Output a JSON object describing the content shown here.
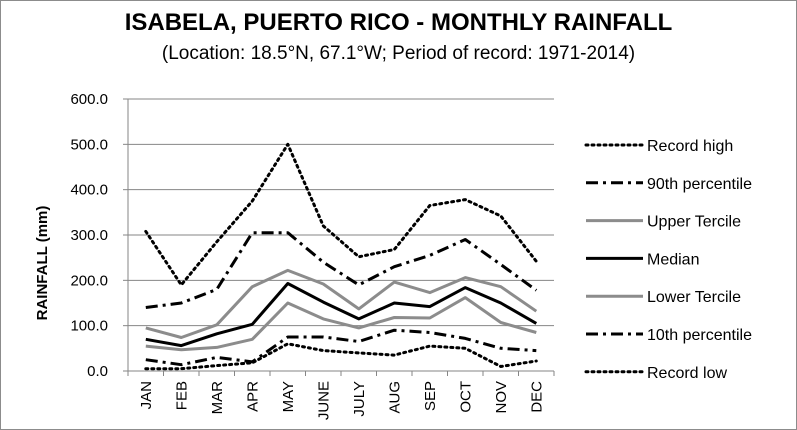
{
  "chart_data": {
    "type": "line",
    "title": "ISABELA, PUERTO RICO - MONTHLY RAINFALL",
    "subtitle": "(Location: 18.5°N, 67.1°W; Period of record: 1971-2014)",
    "xlabel": "",
    "ylabel": "RAINFALL (mm)",
    "ylim": [
      0,
      600
    ],
    "yticks": [
      "0.0",
      "100.0",
      "200.0",
      "300.0",
      "400.0",
      "500.0",
      "600.0"
    ],
    "grid": "horizontal",
    "legend_position": "right",
    "categories": [
      "JAN",
      "FEB",
      "MAR",
      "APR",
      "MAY",
      "JUNE",
      "JULY",
      "AUG",
      "SEP",
      "OCT",
      "NOV",
      "DEC"
    ],
    "series": [
      {
        "name": "Record high",
        "style": "dotted",
        "color": "#000000",
        "values": [
          308,
          190,
          285,
          375,
          500,
          320,
          252,
          268,
          365,
          378,
          342,
          242
        ]
      },
      {
        "name": "90th percentile",
        "style": "dashdot",
        "color": "#000000",
        "values": [
          140,
          150,
          180,
          305,
          305,
          240,
          190,
          230,
          255,
          290,
          235,
          178
        ]
      },
      {
        "name": "Upper Tercile",
        "style": "solid",
        "color": "#8c8c8c",
        "values": [
          95,
          74,
          102,
          186,
          222,
          192,
          137,
          196,
          173,
          206,
          186,
          132
        ]
      },
      {
        "name": "Median",
        "style": "solid",
        "color": "#000000",
        "values": [
          70,
          56,
          82,
          103,
          193,
          152,
          115,
          150,
          142,
          184,
          150,
          105
        ]
      },
      {
        "name": "Lower Tercile",
        "style": "solid",
        "color": "#8c8c8c",
        "values": [
          55,
          47,
          52,
          70,
          150,
          115,
          95,
          118,
          117,
          162,
          107,
          85
        ]
      },
      {
        "name": "10th percentile",
        "style": "dashdot",
        "color": "#000000",
        "values": [
          25,
          14,
          30,
          20,
          75,
          75,
          65,
          90,
          85,
          72,
          50,
          45
        ]
      },
      {
        "name": "Record low",
        "style": "dotted",
        "color": "#000000",
        "values": [
          5,
          5,
          12,
          18,
          60,
          45,
          40,
          35,
          55,
          50,
          10,
          22
        ]
      }
    ]
  }
}
